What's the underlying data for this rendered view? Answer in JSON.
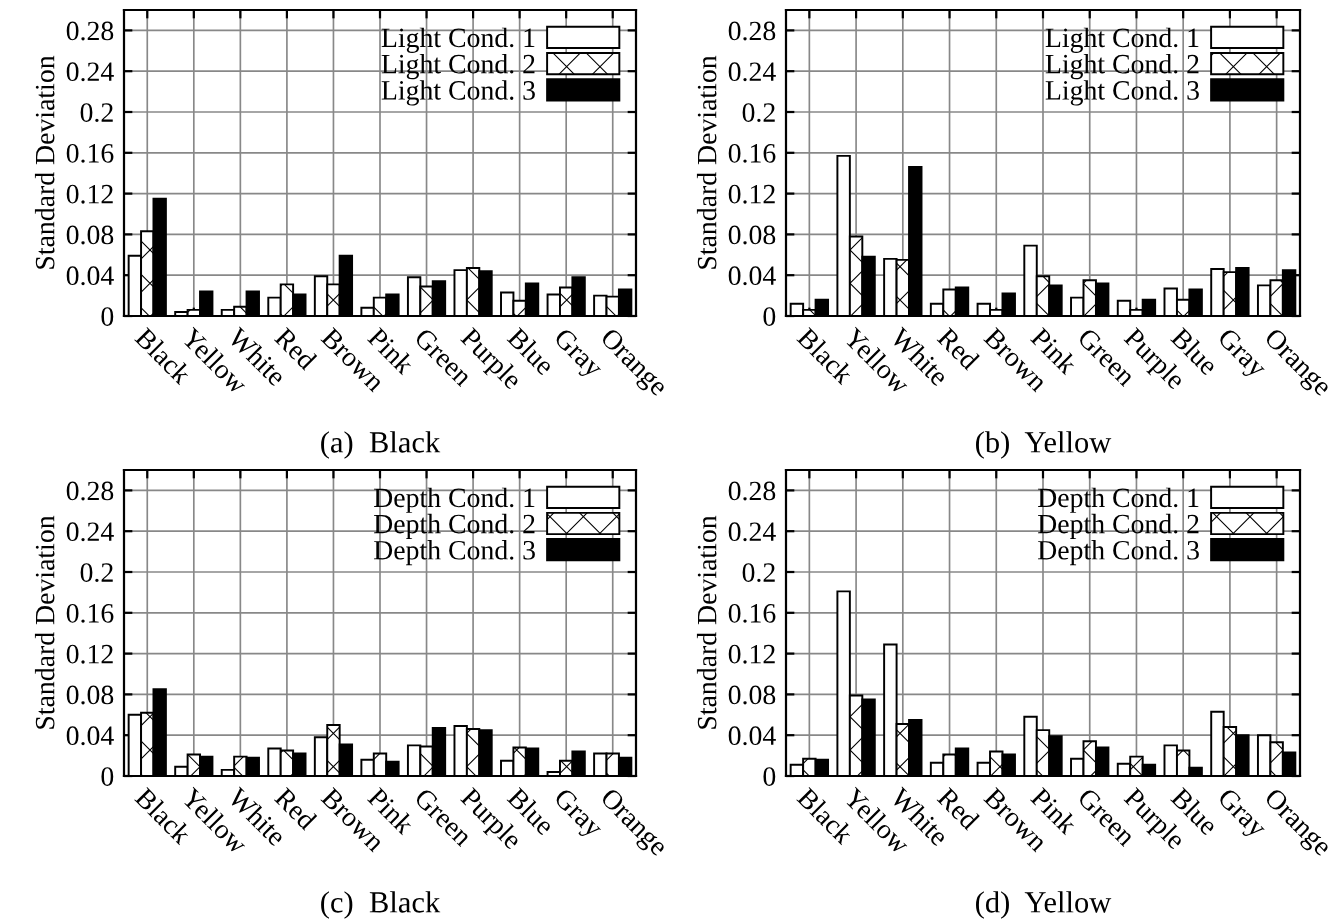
{
  "chart_data": [
    {
      "type": "bar",
      "title": "(a)  Black",
      "ylabel": "Standard Deviation",
      "categories": [
        "Black",
        "Yellow",
        "White",
        "Red",
        "Brown",
        "Pink",
        "Green",
        "Purple",
        "Blue",
        "Gray",
        "Orange"
      ],
      "ylim": [
        0,
        0.3
      ],
      "yticks": [
        0,
        0.04,
        0.08,
        0.12,
        0.16,
        0.2,
        0.24,
        0.28
      ],
      "grid": true,
      "legend": "top right",
      "series": [
        {
          "name": "Light Cond. 1",
          "color": "#ffffff",
          "values": [
            0.059,
            0.004,
            0.006,
            0.018,
            0.039,
            0.008,
            0.038,
            0.045,
            0.023,
            0.021,
            0.02
          ]
        },
        {
          "name": "Light Cond. 2",
          "color": "#000000",
          "values": [
            0.083,
            0.006,
            0.009,
            0.031,
            0.031,
            0.018,
            0.029,
            0.047,
            0.015,
            0.028,
            0.019
          ]
        },
        {
          "name": "Light Cond. 3",
          "color": "#000000",
          "values": [
            0.115,
            0.024,
            0.024,
            0.021,
            0.059,
            0.021,
            0.034,
            0.044,
            0.032,
            0.038,
            0.026
          ]
        }
      ]
    },
    {
      "type": "bar",
      "title": "(b)  Yellow",
      "ylabel": "Standard Deviation",
      "categories": [
        "Black",
        "Yellow",
        "White",
        "Red",
        "Brown",
        "Pink",
        "Green",
        "Purple",
        "Blue",
        "Gray",
        "Orange"
      ],
      "ylim": [
        0,
        0.3
      ],
      "yticks": [
        0,
        0.04,
        0.08,
        0.12,
        0.16,
        0.2,
        0.24,
        0.28
      ],
      "grid": true,
      "legend": "top right",
      "series": [
        {
          "name": "Light Cond. 1",
          "color": "#ffffff",
          "values": [
            0.012,
            0.157,
            0.056,
            0.012,
            0.012,
            0.069,
            0.018,
            0.015,
            0.027,
            0.046,
            0.03
          ]
        },
        {
          "name": "Light Cond. 2",
          "color": "#000000",
          "values": [
            0.006,
            0.078,
            0.055,
            0.026,
            0.006,
            0.039,
            0.035,
            0.006,
            0.016,
            0.043,
            0.035
          ]
        },
        {
          "name": "Light Cond. 3",
          "color": "#000000",
          "values": [
            0.016,
            0.058,
            0.146,
            0.028,
            0.022,
            0.03,
            0.032,
            0.016,
            0.026,
            0.047,
            0.045
          ]
        }
      ]
    },
    {
      "type": "bar",
      "title": "(c)  Black",
      "ylabel": "Standard Deviation",
      "categories": [
        "Black",
        "Yellow",
        "White",
        "Red",
        "Brown",
        "Pink",
        "Green",
        "Purple",
        "Blue",
        "Gray",
        "Orange"
      ],
      "ylim": [
        0,
        0.3
      ],
      "yticks": [
        0,
        0.04,
        0.08,
        0.12,
        0.16,
        0.2,
        0.24,
        0.28
      ],
      "grid": true,
      "legend": "top right",
      "series": [
        {
          "name": "Depth Cond. 1",
          "color": "#ffffff",
          "values": [
            0.06,
            0.009,
            0.006,
            0.027,
            0.038,
            0.016,
            0.03,
            0.049,
            0.015,
            0.004,
            0.022
          ]
        },
        {
          "name": "Depth Cond. 2",
          "color": "#000000",
          "values": [
            0.062,
            0.021,
            0.019,
            0.025,
            0.05,
            0.022,
            0.029,
            0.046,
            0.028,
            0.015,
            0.022
          ]
        },
        {
          "name": "Depth Cond. 3",
          "color": "#000000",
          "values": [
            0.085,
            0.019,
            0.018,
            0.022,
            0.031,
            0.014,
            0.047,
            0.045,
            0.027,
            0.024,
            0.018
          ]
        }
      ]
    },
    {
      "type": "bar",
      "title": "(d)  Yellow",
      "ylabel": "Standard Deviation",
      "categories": [
        "Black",
        "Yellow",
        "White",
        "Red",
        "Brown",
        "Pink",
        "Green",
        "Purple",
        "Blue",
        "Gray",
        "Orange"
      ],
      "ylim": [
        0,
        0.3
      ],
      "yticks": [
        0,
        0.04,
        0.08,
        0.12,
        0.16,
        0.2,
        0.24,
        0.28
      ],
      "grid": true,
      "legend": "top right",
      "series": [
        {
          "name": "Depth Cond. 1",
          "color": "#ffffff",
          "values": [
            0.011,
            0.181,
            0.129,
            0.013,
            0.013,
            0.058,
            0.017,
            0.012,
            0.03,
            0.063,
            0.04
          ]
        },
        {
          "name": "Depth Cond. 2",
          "color": "#000000",
          "values": [
            0.017,
            0.079,
            0.051,
            0.021,
            0.024,
            0.045,
            0.034,
            0.019,
            0.025,
            0.048,
            0.033
          ]
        },
        {
          "name": "Depth Cond. 3",
          "color": "#000000",
          "values": [
            0.016,
            0.075,
            0.055,
            0.027,
            0.021,
            0.039,
            0.028,
            0.011,
            0.008,
            0.04,
            0.023
          ]
        }
      ]
    }
  ]
}
